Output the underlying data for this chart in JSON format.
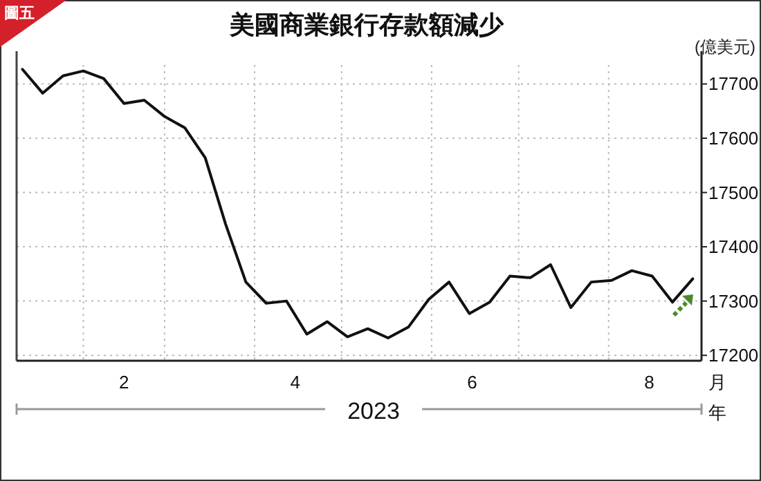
{
  "chart_data": {
    "type": "line",
    "title": "美國商業銀行存款額減少",
    "ylabel": "(億美元)",
    "xlabel": "2023",
    "annotations": [
      "圖五",
      "月",
      "年"
    ],
    "x": [
      "2023-01-11",
      "2023-01-18",
      "2023-01-25",
      "2023-02-01",
      "2023-02-08",
      "2023-02-15",
      "2023-02-22",
      "2023-03-01",
      "2023-03-08",
      "2023-03-15",
      "2023-03-22",
      "2023-03-29",
      "2023-04-05",
      "2023-04-12",
      "2023-04-19",
      "2023-04-26",
      "2023-05-03",
      "2023-05-10",
      "2023-05-17",
      "2023-05-24",
      "2023-05-31",
      "2023-06-07",
      "2023-06-14",
      "2023-06-21",
      "2023-06-28",
      "2023-07-05",
      "2023-07-12",
      "2023-07-19",
      "2023-07-26",
      "2023-08-02",
      "2023-08-09",
      "2023-08-16",
      "2023-08-23",
      "2023-08-30"
    ],
    "series": [
      {
        "color": "#111111",
        "values": [
          17727,
          17683,
          17715,
          17724,
          17710,
          17664,
          17670,
          17640,
          17619,
          17564,
          17442,
          17335,
          17296,
          17300,
          17239,
          17262,
          17234,
          17249,
          17232,
          17252,
          17303,
          17335,
          17277,
          17298,
          17346,
          17343,
          17367,
          17288,
          17335,
          17338,
          17356,
          17346,
          17298,
          17341
        ]
      }
    ],
    "xlim": [
      "2023-01-09",
      "2023-09-02"
    ],
    "xticks": [
      {
        "value": "2023-02-01",
        "label": null
      },
      {
        "value": "2023-02-15",
        "label": "2"
      },
      {
        "value": "2023-03-01",
        "label": null
      },
      {
        "value": "2023-04-01",
        "label": null
      },
      {
        "value": "2023-04-15",
        "label": "4"
      },
      {
        "value": "2023-05-01",
        "label": null
      },
      {
        "value": "2023-06-01",
        "label": null
      },
      {
        "value": "2023-06-15",
        "label": "6"
      },
      {
        "value": "2023-07-01",
        "label": null
      },
      {
        "value": "2023-08-01",
        "label": null
      },
      {
        "value": "2023-08-15",
        "label": "8"
      }
    ],
    "ylim": [
      17190,
      17735
    ],
    "yticks": [
      17200,
      17300,
      17400,
      17500,
      17600,
      17700
    ],
    "grid": true,
    "marker": "none",
    "line_style": "solid"
  }
}
